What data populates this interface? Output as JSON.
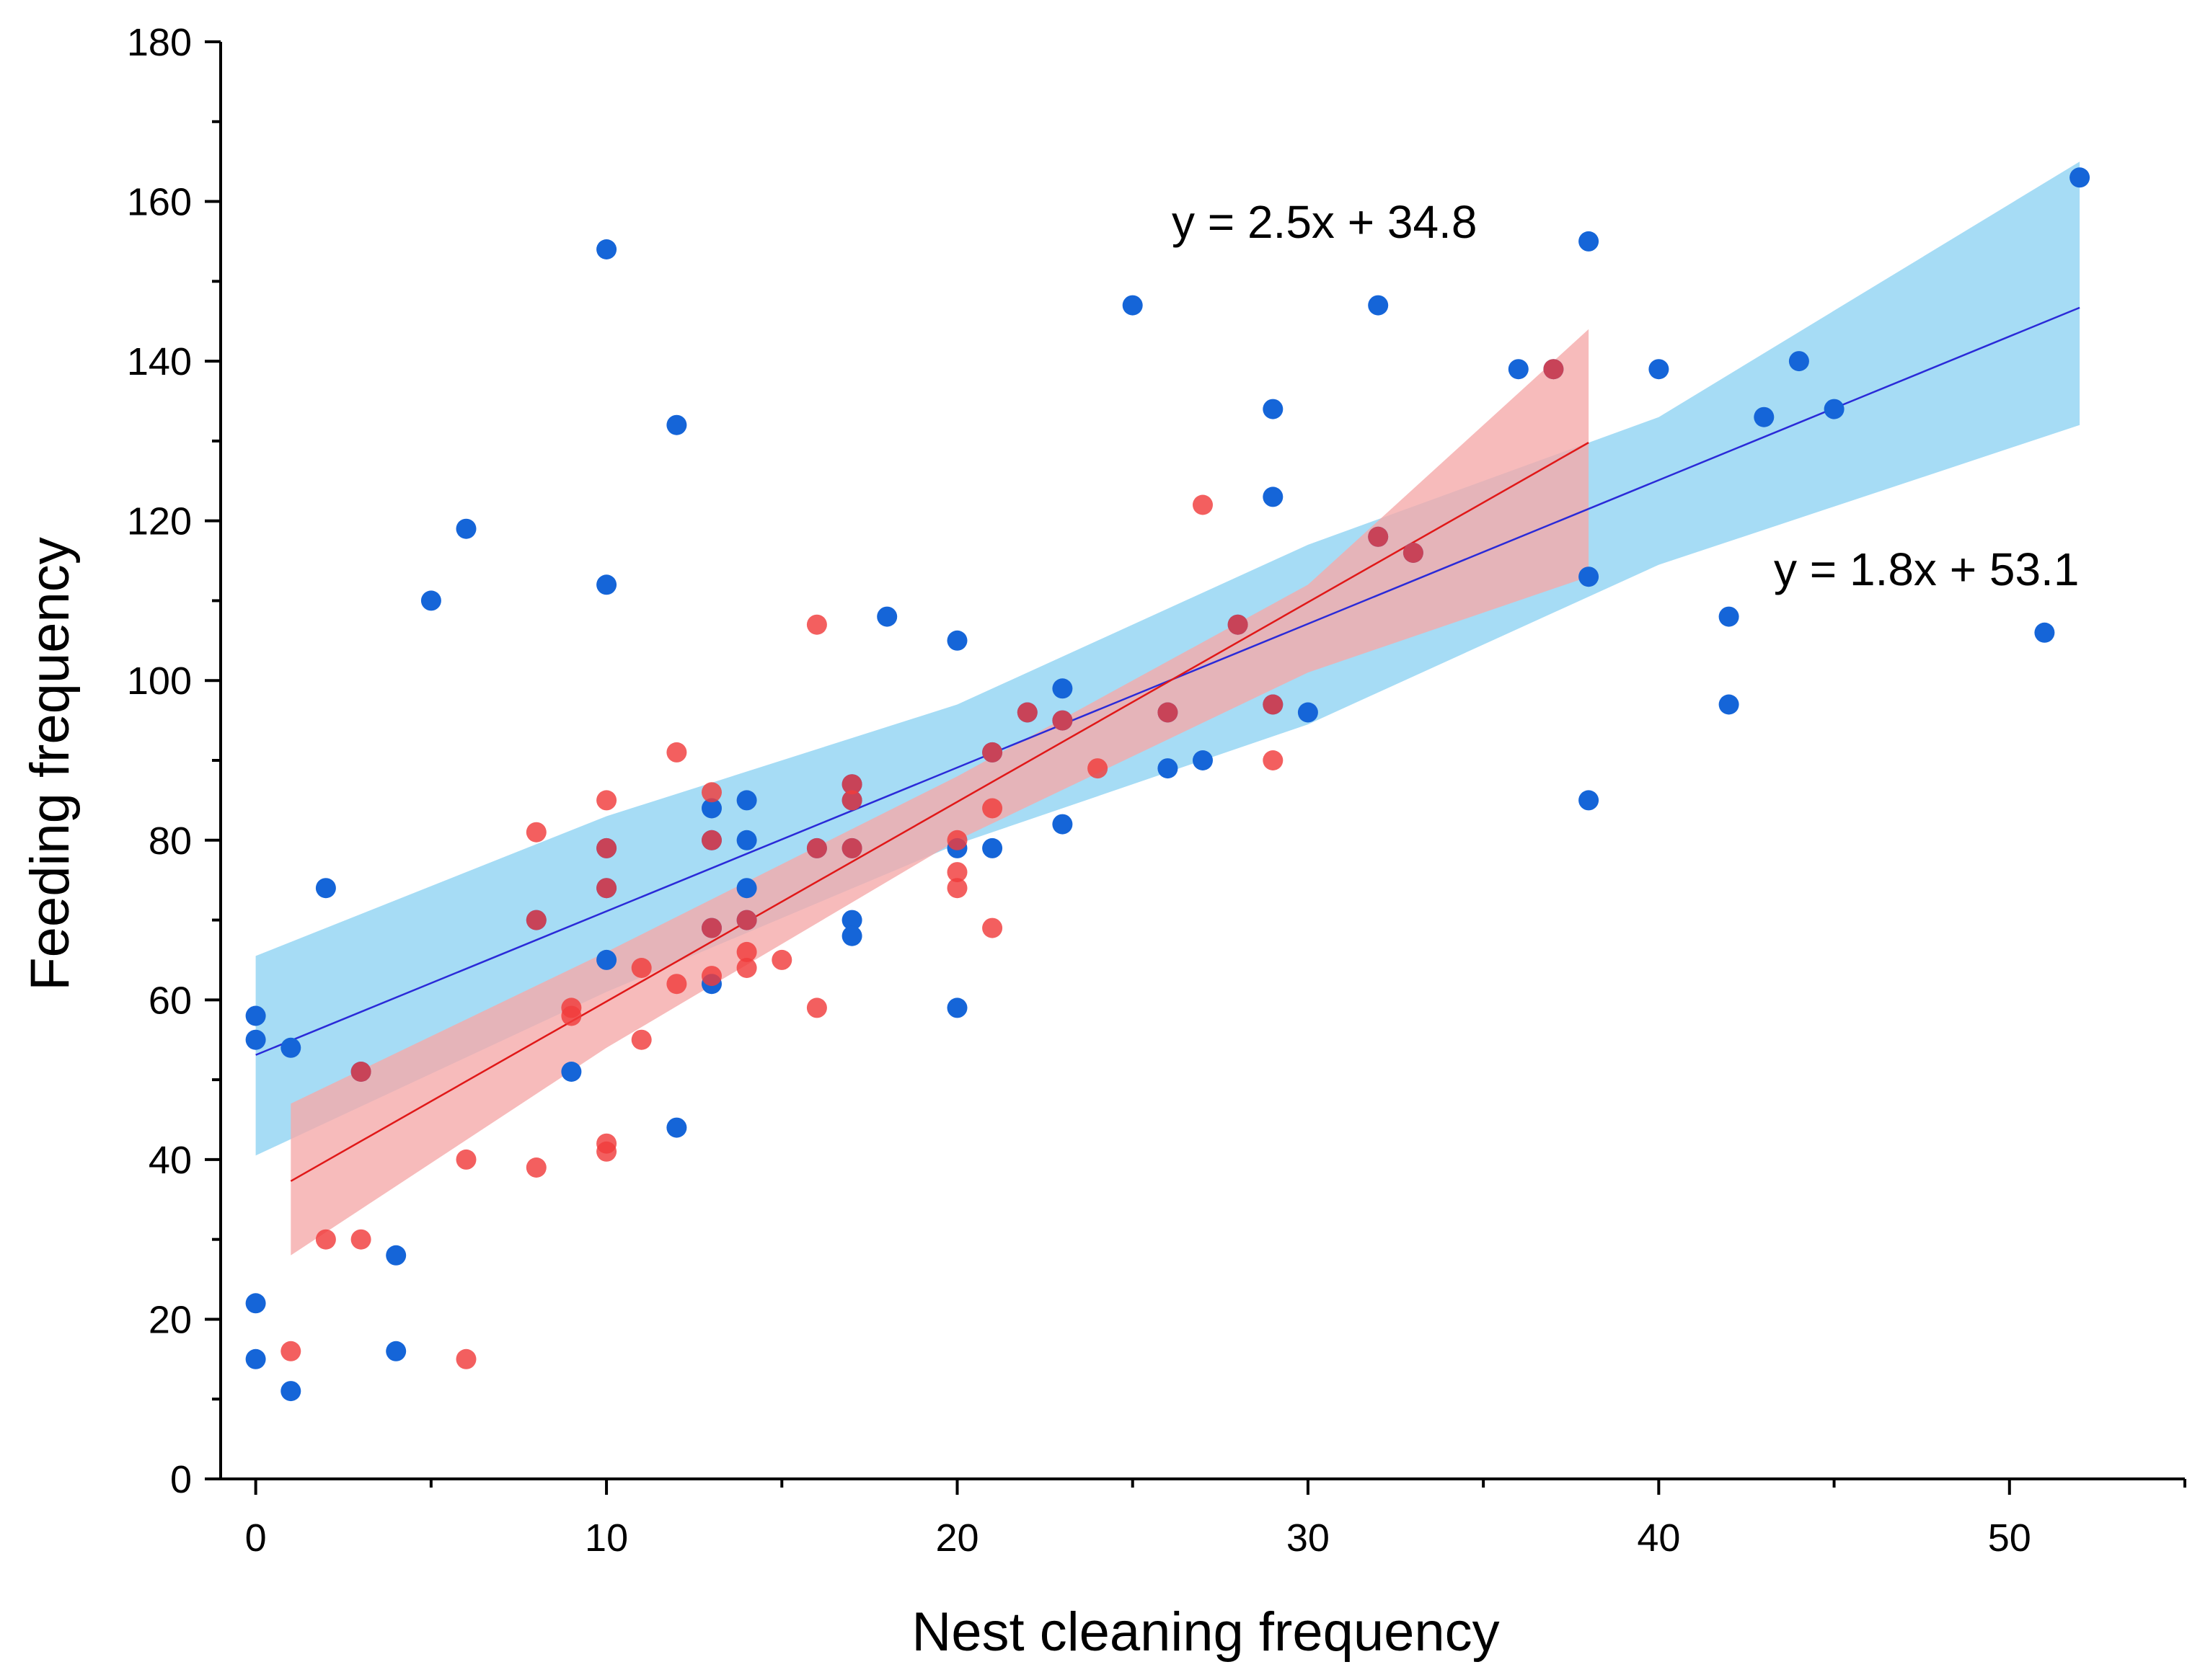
{
  "chart_data": {
    "type": "scatter",
    "title": "",
    "xlabel": "Nest cleaning frequency",
    "ylabel": "Feeding frequency",
    "xlim": [
      -1,
      55
    ],
    "ylim": [
      0,
      180
    ],
    "xticks": [
      0,
      10,
      20,
      30,
      40,
      50
    ],
    "yticks": [
      0,
      20,
      40,
      60,
      80,
      100,
      120,
      140,
      160,
      180
    ],
    "grid": false,
    "series": [
      {
        "name": "blue",
        "color": "#1565d8",
        "band_color": "#a6dcf5",
        "line_color": "#2a2ad8",
        "fit": {
          "slope": 1.8,
          "intercept": 53.1,
          "x_range": [
            0,
            52
          ]
        },
        "band": {
          "x": [
            0,
            10,
            20,
            30,
            40,
            52
          ],
          "lower": [
            40.5,
            61,
            79.5,
            94.5,
            114.5,
            132
          ],
          "upper": [
            65.5,
            83,
            97,
            117,
            133,
            165
          ]
        },
        "equation": "y = 1.8x + 53.1",
        "points": [
          [
            0,
            58
          ],
          [
            0,
            55
          ],
          [
            0,
            22
          ],
          [
            0,
            15
          ],
          [
            1,
            54
          ],
          [
            1,
            11
          ],
          [
            2,
            74
          ],
          [
            3,
            51
          ],
          [
            4,
            28
          ],
          [
            4,
            16
          ],
          [
            5,
            110
          ],
          [
            6,
            119
          ],
          [
            8,
            70
          ],
          [
            9,
            51
          ],
          [
            10,
            154
          ],
          [
            10,
            112
          ],
          [
            10,
            79
          ],
          [
            10,
            74
          ],
          [
            10,
            65
          ],
          [
            12,
            132
          ],
          [
            12,
            44
          ],
          [
            13,
            84
          ],
          [
            13,
            80
          ],
          [
            13,
            69
          ],
          [
            13,
            62
          ],
          [
            14,
            85
          ],
          [
            14,
            80
          ],
          [
            14,
            74
          ],
          [
            14,
            70
          ],
          [
            16,
            79
          ],
          [
            17,
            87
          ],
          [
            17,
            85
          ],
          [
            17,
            79
          ],
          [
            17,
            70
          ],
          [
            17,
            68
          ],
          [
            18,
            108
          ],
          [
            20,
            105
          ],
          [
            20,
            79
          ],
          [
            20,
            59
          ],
          [
            21,
            91
          ],
          [
            21,
            79
          ],
          [
            22,
            96
          ],
          [
            23,
            99
          ],
          [
            23,
            95
          ],
          [
            23,
            82
          ],
          [
            25,
            147
          ],
          [
            26,
            96
          ],
          [
            26,
            89
          ],
          [
            27,
            90
          ],
          [
            28,
            107
          ],
          [
            29,
            134
          ],
          [
            29,
            123
          ],
          [
            29,
            97
          ],
          [
            30,
            96
          ],
          [
            32,
            147
          ],
          [
            32,
            118
          ],
          [
            33,
            116
          ],
          [
            36,
            139
          ],
          [
            37,
            139
          ],
          [
            38,
            155
          ],
          [
            38,
            113
          ],
          [
            38,
            85
          ],
          [
            40,
            139
          ],
          [
            42,
            108
          ],
          [
            42,
            97
          ],
          [
            43,
            133
          ],
          [
            44,
            140
          ],
          [
            45,
            134
          ],
          [
            51,
            106
          ],
          [
            52,
            163
          ]
        ]
      },
      {
        "name": "red",
        "color": "#f03c3c",
        "band_color": "#f5aaaa",
        "line_color": "#e01818",
        "fit": {
          "slope": 2.5,
          "intercept": 34.8,
          "x_range": [
            1,
            38
          ]
        },
        "band": {
          "x": [
            1,
            10,
            20,
            30,
            38
          ],
          "lower": [
            28,
            54,
            80,
            101,
            113
          ],
          "upper": [
            47,
            66,
            88,
            112,
            144
          ]
        },
        "equation": "y = 2.5x + 34.8",
        "points": [
          [
            1,
            16
          ],
          [
            2,
            30
          ],
          [
            3,
            30
          ],
          [
            3,
            51
          ],
          [
            6,
            40
          ],
          [
            6,
            15
          ],
          [
            8,
            81
          ],
          [
            8,
            70
          ],
          [
            8,
            39
          ],
          [
            9,
            59
          ],
          [
            9,
            58
          ],
          [
            10,
            85
          ],
          [
            10,
            79
          ],
          [
            10,
            74
          ],
          [
            10,
            42
          ],
          [
            10,
            41
          ],
          [
            11,
            64
          ],
          [
            11,
            55
          ],
          [
            12,
            91
          ],
          [
            12,
            62
          ],
          [
            13,
            86
          ],
          [
            13,
            80
          ],
          [
            13,
            69
          ],
          [
            13,
            63
          ],
          [
            14,
            70
          ],
          [
            14,
            66
          ],
          [
            14,
            64
          ],
          [
            15,
            65
          ],
          [
            16,
            107
          ],
          [
            16,
            79
          ],
          [
            16,
            59
          ],
          [
            17,
            87
          ],
          [
            17,
            85
          ],
          [
            17,
            79
          ],
          [
            20,
            80
          ],
          [
            20,
            76
          ],
          [
            20,
            74
          ],
          [
            21,
            91
          ],
          [
            21,
            84
          ],
          [
            21,
            69
          ],
          [
            22,
            96
          ],
          [
            23,
            95
          ],
          [
            24,
            89
          ],
          [
            26,
            96
          ],
          [
            27,
            122
          ],
          [
            28,
            107
          ],
          [
            29,
            97
          ],
          [
            29,
            90
          ],
          [
            32,
            118
          ],
          [
            33,
            116
          ],
          [
            37,
            139
          ]
        ]
      }
    ]
  }
}
